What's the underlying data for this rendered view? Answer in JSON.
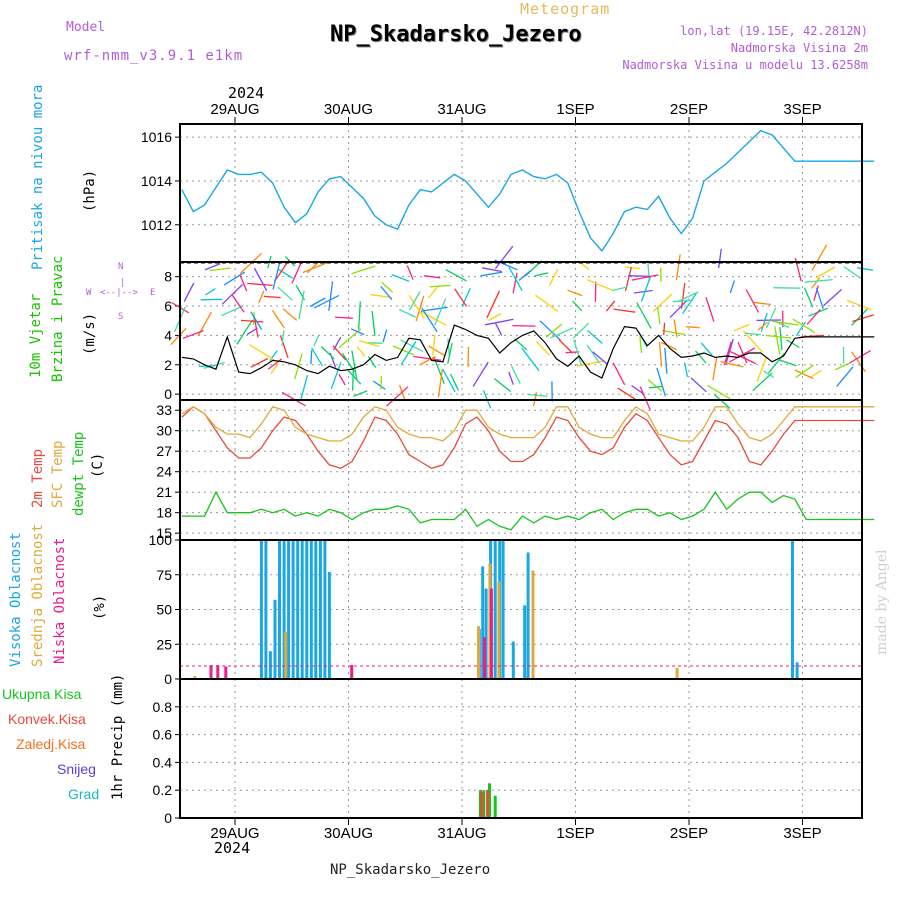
{
  "header": {
    "model_label": "Model",
    "model_name": "wrf-nmm_v3.9.1 e1km",
    "chart_kind": "Meteogram",
    "station": "NP_Skadarsko_Jezero",
    "lonlat": "lon,lat (19.15E, 42.2812N)",
    "altitude": "Nadmorska Visina 2m",
    "model_altitude": "Nadmorska Visina u modelu 13.6258m",
    "year": "2024",
    "footer_station": "NP_Skadarsko_Jezero",
    "watermark": "made by Angel"
  },
  "colors": {
    "pressure": "#1aa7e6",
    "wind_label": "#16c400",
    "temp2m": "#e84a3c",
    "sfc_temp": "#e0aa3a",
    "dewpt": "#17c41b",
    "high_cloud": "#1aa7e6",
    "mid_cloud": "#e0aa3a",
    "low_cloud": "#e81f8a",
    "total_precip": "#17c41b",
    "conv_precip": "#e84a3c",
    "frz_precip": "#f07020",
    "snow": "#5a3de0",
    "graupel": "#1ab8c0",
    "purple": "#b35cd6"
  },
  "labels": {
    "pressure": [
      "Pritisak na nivou mora",
      "(hPa)"
    ],
    "wind": [
      "10m Vjetar",
      "Brzina i Pravac",
      "(m/s)"
    ],
    "wind_compass": [
      "N",
      "|",
      "S",
      "W",
      "E"
    ],
    "temp": [
      "2m Temp",
      "SFC Temp",
      "dewpt Temp",
      "(C)"
    ],
    "cloud": [
      "Visoka Oblacnost",
      "Srednja Oblacnost",
      "Niska Oblacnost",
      "(%)"
    ],
    "precip": [
      "Ukupna Kisa",
      "Konvek.Kisa",
      "Zaledj.Kisa",
      "Snijeg",
      "Grad",
      "1hr Precip (mm)"
    ]
  },
  "chart_data": [
    {
      "type": "line",
      "title": "Pritisak na nivou mora",
      "ylabel": "(hPa)",
      "x_axis": {
        "categories": [
          "29AUG",
          "30AUG",
          "31AUG",
          "1SEP",
          "2SEP",
          "3SEP"
        ],
        "range_days": [
          -0.6,
          5.5
        ]
      },
      "ylim": [
        1010.3,
        1016.6
      ],
      "yticks": [
        1012,
        1014,
        1016
      ],
      "grid": true,
      "series": [
        {
          "name": "Pritisak na nivou mora",
          "color": "#1aa7e6",
          "x": [
            -0.6,
            -0.5,
            -0.4,
            -0.3,
            -0.2,
            -0.1,
            0.0,
            0.1,
            0.2,
            0.3,
            0.4,
            0.5,
            0.6,
            0.7,
            0.8,
            0.9,
            1.0,
            1.1,
            1.2,
            1.3,
            1.4,
            1.5,
            1.6,
            1.7,
            1.8,
            1.9,
            2.0,
            2.1,
            2.2,
            2.3,
            2.4,
            2.5,
            2.6,
            2.7,
            2.8,
            2.9,
            3.0,
            3.1,
            3.2,
            3.3,
            3.4,
            3.5,
            3.6,
            3.7,
            3.8,
            3.9,
            4.0,
            4.1,
            4.2,
            4.3,
            4.4,
            4.5,
            4.6,
            4.7,
            4.8,
            4.9,
            5.0,
            5.1,
            5.2,
            5.3,
            5.4,
            5.5
          ],
          "y": [
            1013.6,
            1012.6,
            1012.9,
            1013.7,
            1014.5,
            1014.3,
            1014.3,
            1014.4,
            1013.9,
            1012.8,
            1012.1,
            1012.5,
            1013.5,
            1014.1,
            1014.2,
            1013.7,
            1013.2,
            1012.4,
            1012.0,
            1011.8,
            1012.9,
            1013.6,
            1013.5,
            1013.9,
            1014.3,
            1014.0,
            1013.4,
            1012.8,
            1013.4,
            1014.3,
            1014.5,
            1014.2,
            1014.1,
            1014.3,
            1013.9,
            1012.6,
            1011.4,
            1010.8,
            1011.6,
            1012.6,
            1012.8,
            1012.7,
            1013.3,
            1012.3,
            1011.6,
            1012.3,
            1014.0,
            1014.4,
            1014.8,
            1015.3,
            1015.8,
            1016.3,
            1016.1,
            1015.5,
            1014.9,
            1014.9,
            1014.9,
            1014.9,
            1014.9,
            1014.9,
            1014.9,
            1014.9
          ]
        }
      ]
    },
    {
      "type": "line",
      "title": "10m Vjetar Brzina i Pravac",
      "ylabel": "(m/s)",
      "ylim": [
        -0.4,
        9.0
      ],
      "yticks": [
        0,
        2,
        4,
        6,
        8
      ],
      "grid": true,
      "series": [
        {
          "name": "10m Vjetar Brzina",
          "color": "#000000",
          "x": [
            -0.6,
            -0.5,
            -0.4,
            -0.3,
            -0.2,
            -0.1,
            0.0,
            0.1,
            0.2,
            0.3,
            0.4,
            0.5,
            0.6,
            0.7,
            0.8,
            0.9,
            1.0,
            1.1,
            1.2,
            1.3,
            1.4,
            1.5,
            1.6,
            1.7,
            1.8,
            1.9,
            2.0,
            2.1,
            2.2,
            2.3,
            2.4,
            2.5,
            2.6,
            2.7,
            2.8,
            2.9,
            3.0,
            3.1,
            3.2,
            3.3,
            3.4,
            3.5,
            3.6,
            3.7,
            3.8,
            3.9,
            4.0,
            4.1,
            4.2,
            4.3,
            4.4,
            4.5,
            4.6,
            4.7,
            4.8,
            4.9,
            5.0,
            5.1,
            5.2,
            5.3,
            5.4,
            5.5
          ],
          "y": [
            2.5,
            2.4,
            2.0,
            1.7,
            3.9,
            1.5,
            1.4,
            1.8,
            2.3,
            2.2,
            2.0,
            1.6,
            1.4,
            1.9,
            1.6,
            1.7,
            2.0,
            2.7,
            2.3,
            2.5,
            3.8,
            3.7,
            2.3,
            2.2,
            4.7,
            4.4,
            4.0,
            3.8,
            2.8,
            3.5,
            4.0,
            4.3,
            3.5,
            2.4,
            1.9,
            2.6,
            1.5,
            1.1,
            3.1,
            4.6,
            4.5,
            3.3,
            4.0,
            3.1,
            2.5,
            2.6,
            2.8,
            2.5,
            2.6,
            2.5,
            2.8,
            2.8,
            2.2,
            2.6,
            3.8,
            3.9,
            3.9,
            3.9,
            3.9,
            3.9,
            3.9,
            3.9
          ]
        }
      ]
    },
    {
      "type": "line",
      "title": "2m Temp / SFC Temp / dewpt Temp",
      "ylabel": "(C)",
      "ylim": [
        14.0,
        34.5
      ],
      "yticks": [
        15,
        18,
        21,
        24,
        27,
        30,
        33
      ],
      "grid": true,
      "series": [
        {
          "name": "2m Temp",
          "color": "#e84a3c",
          "x": [
            -0.6,
            -0.5,
            -0.4,
            -0.3,
            -0.2,
            -0.1,
            0.0,
            0.1,
            0.2,
            0.3,
            0.4,
            0.5,
            0.6,
            0.7,
            0.8,
            0.9,
            1.0,
            1.1,
            1.2,
            1.3,
            1.4,
            1.5,
            1.6,
            1.7,
            1.8,
            1.9,
            2.0,
            2.1,
            2.2,
            2.3,
            2.4,
            2.5,
            2.6,
            2.7,
            2.8,
            2.9,
            3.0,
            3.1,
            3.2,
            3.3,
            3.4,
            3.5,
            3.6,
            3.7,
            3.8,
            3.9,
            4.0,
            4.1,
            4.2,
            4.3,
            4.4,
            4.5,
            4.6,
            4.7,
            4.8,
            4.9,
            5.0,
            5.1,
            5.2,
            5.3,
            5.4,
            5.5
          ],
          "y": [
            32.0,
            33.5,
            32.5,
            30.0,
            27.5,
            26.0,
            26.0,
            27.5,
            30.0,
            32.0,
            31.5,
            29.5,
            27.0,
            25.0,
            24.5,
            25.5,
            28.5,
            32.0,
            31.5,
            29.5,
            26.5,
            25.5,
            24.5,
            25.0,
            27.5,
            31.0,
            32.0,
            30.0,
            27.0,
            25.5,
            25.5,
            26.5,
            29.0,
            32.0,
            31.5,
            29.0,
            27.0,
            26.5,
            27.5,
            30.5,
            32.5,
            31.5,
            29.0,
            26.5,
            25.0,
            25.5,
            28.5,
            31.5,
            31.0,
            29.0,
            25.5,
            25.0,
            27.0,
            29.5,
            31.5,
            31.5,
            31.5,
            31.5,
            31.5,
            31.5,
            31.5,
            31.5
          ]
        },
        {
          "name": "SFC Temp",
          "color": "#e0aa3a",
          "x": [
            -0.6,
            -0.5,
            -0.4,
            -0.3,
            -0.2,
            -0.1,
            0.0,
            0.1,
            0.2,
            0.3,
            0.4,
            0.5,
            0.6,
            0.7,
            0.8,
            0.9,
            1.0,
            1.1,
            1.2,
            1.3,
            1.4,
            1.5,
            1.6,
            1.7,
            1.8,
            1.9,
            2.0,
            2.1,
            2.2,
            2.3,
            2.4,
            2.5,
            2.6,
            2.7,
            2.8,
            2.9,
            3.0,
            3.1,
            3.2,
            3.3,
            3.4,
            3.5,
            3.6,
            3.7,
            3.8,
            3.9,
            4.0,
            4.1,
            4.2,
            4.3,
            4.4,
            4.5,
            4.6,
            4.7,
            4.8,
            4.9,
            5.0,
            5.1,
            5.2,
            5.3,
            5.4,
            5.5
          ],
          "y": [
            32.5,
            33.5,
            32.5,
            30.5,
            29.5,
            29.5,
            29.0,
            31.0,
            33.5,
            33.0,
            30.5,
            29.5,
            29.0,
            28.5,
            28.5,
            29.5,
            32.0,
            33.5,
            33.0,
            30.5,
            29.5,
            29.0,
            29.0,
            28.5,
            30.0,
            33.0,
            33.0,
            30.5,
            29.5,
            29.0,
            29.0,
            29.0,
            30.5,
            33.5,
            33.5,
            30.5,
            29.5,
            29.0,
            29.0,
            31.5,
            33.5,
            32.5,
            29.5,
            29.0,
            28.5,
            28.5,
            30.5,
            33.5,
            33.5,
            31.0,
            29.0,
            28.5,
            29.5,
            31.5,
            33.5,
            33.5,
            33.5,
            33.5,
            33.5,
            33.5,
            33.5,
            33.5
          ]
        },
        {
          "name": "dewpt Temp",
          "color": "#17c41b",
          "x": [
            -0.6,
            -0.5,
            -0.4,
            -0.3,
            -0.2,
            -0.1,
            0.0,
            0.1,
            0.2,
            0.3,
            0.4,
            0.5,
            0.6,
            0.7,
            0.8,
            0.9,
            1.0,
            1.1,
            1.2,
            1.3,
            1.4,
            1.5,
            1.6,
            1.7,
            1.8,
            1.9,
            2.0,
            2.1,
            2.2,
            2.3,
            2.4,
            2.5,
            2.6,
            2.7,
            2.8,
            2.9,
            3.0,
            3.1,
            3.2,
            3.3,
            3.4,
            3.5,
            3.6,
            3.7,
            3.8,
            3.9,
            4.0,
            4.1,
            4.2,
            4.3,
            4.4,
            4.5,
            4.6,
            4.7,
            4.8,
            4.9,
            5.0,
            5.1,
            5.2,
            5.3,
            5.4,
            5.5
          ],
          "y": [
            17.5,
            17.5,
            17.5,
            21.0,
            18.0,
            18.0,
            18.0,
            18.5,
            18.0,
            18.5,
            17.5,
            18.0,
            17.5,
            18.5,
            18.0,
            17.0,
            18.0,
            18.5,
            18.5,
            19.0,
            18.5,
            16.5,
            17.0,
            17.0,
            17.0,
            18.5,
            16.0,
            17.0,
            16.0,
            15.5,
            17.5,
            16.5,
            17.5,
            17.0,
            17.5,
            17.0,
            18.0,
            18.5,
            17.0,
            18.0,
            18.5,
            18.5,
            17.5,
            18.0,
            17.0,
            17.5,
            18.5,
            21.0,
            18.5,
            20.0,
            21.0,
            21.0,
            19.5,
            20.5,
            20.0,
            17.0,
            17.0,
            17.0,
            17.0,
            17.0,
            17.0,
            17.0
          ]
        }
      ]
    },
    {
      "type": "bar",
      "title": "Oblacnost",
      "ylabel": "(%)",
      "ylim": [
        0,
        100
      ],
      "yticks": [
        0,
        25,
        50,
        75,
        100
      ],
      "grid": true,
      "series": [
        {
          "name": "Visoka Oblacnost",
          "color": "#1aa7e6",
          "x": [
            0.1,
            0.14,
            0.18,
            0.22,
            0.26,
            0.3,
            0.34,
            0.38,
            0.42,
            0.46,
            0.5,
            0.54,
            0.58,
            0.62,
            0.66,
            0.7,
            2.02,
            2.05,
            2.08,
            2.12,
            2.16,
            2.2,
            2.23,
            2.26,
            2.29,
            2.32,
            2.42,
            2.45,
            2.48,
            4.78,
            4.82
          ],
          "y": [
            100,
            100,
            20,
            57,
            100,
            100,
            100,
            100,
            100,
            100,
            100,
            100,
            100,
            100,
            100,
            77,
            36,
            81,
            65,
            100,
            100,
            100,
            100,
            0,
            0,
            27,
            53,
            91,
            0,
            100,
            12
          ]
        },
        {
          "name": "Srednja Oblacnost",
          "color": "#e0aa3a",
          "x": [
            -0.5,
            0.3,
            2.0,
            2.1,
            2.18,
            2.48,
            3.75
          ],
          "y": [
            2,
            34,
            38,
            83,
            70,
            78,
            8
          ]
        },
        {
          "name": "Niska Oblacnost",
          "color": "#e81f8a",
          "x": [
            -0.37,
            -0.31,
            -0.24,
            0.87,
            2.04,
            2.1
          ],
          "y": [
            10,
            10,
            9,
            10,
            30,
            65
          ]
        }
      ]
    },
    {
      "type": "bar",
      "title": "1hr Precip",
      "ylabel": "1hr Precip (mm)",
      "ylim": [
        0,
        1.0
      ],
      "yticks": [
        0,
        0.2,
        0.4,
        0.6,
        0.8
      ],
      "grid": true,
      "series": [
        {
          "name": "Ukupna Kisa",
          "color": "#17c41b",
          "x": [
            2.03,
            2.06,
            2.11,
            2.16
          ],
          "y": [
            0.2,
            0.2,
            0.25,
            0.16
          ]
        },
        {
          "name": "Konvek.Kisa",
          "color": "#e84a3c",
          "x": [
            2.03,
            2.08
          ],
          "y": [
            0.19,
            0.2
          ]
        }
      ]
    }
  ]
}
